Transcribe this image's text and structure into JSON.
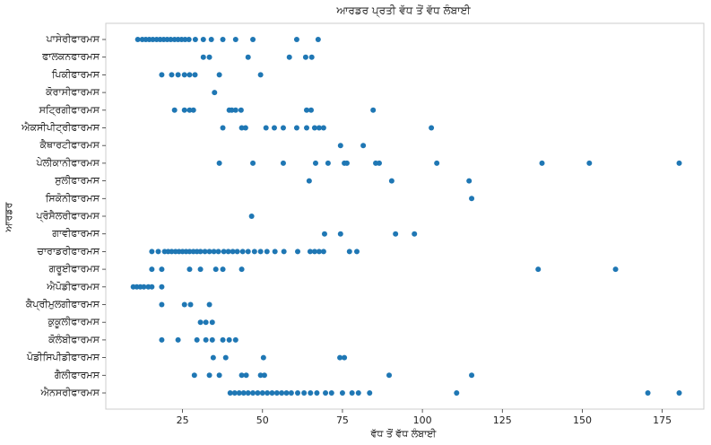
{
  "chart_data": {
    "type": "strip",
    "title": "ਆਰਡਰ ਪ੍ਰਤੀ ਵੱਧ ਤੋਂ ਵੱਧ ਲੰਬਾਈ",
    "xlabel": "ਵੱਧ ਤੋਂ ਵੱਧ ਲੰਬਾਈ",
    "ylabel": "ਆਰਡਰ",
    "color": "#1f77b4",
    "xlim": [
      1,
      188
    ],
    "xticks": [
      25,
      50,
      75,
      100,
      125,
      150,
      175
    ],
    "categories": [
      "ਪਾਸੇਰੀਫਾਰਮਸ",
      "ਫਾਲਕਨਫਾਰਮਸ",
      "ਪਿਕੀਫਾਰਮਸ",
      "ਕੋਰਾਸੀਫਾਰਮਸ",
      "ਸਟ੍ਰਿਗੀਫਾਰਮਸ",
      "ਐਕਸੀਪੀਟ੍ਰੀਫਾਰਮਸ",
      "ਕੈਥਾਰਟੀਫਾਰਮਸ",
      "ਪੇਲੀਕਾਨੀਫਾਰਮਸ",
      "ਸੁਲੀਫਾਰਮਸ",
      "ਸਿਕੋਨੀਫਾਰਮਸ",
      "ਪ੍ਰੋਸੈਲਰੀਫਾਰਮਸ",
      "ਗਾਵੀਫਾਰਮਸ",
      "ਚਾਰਾਡਰੀਫਾਰਮਸ",
      "ਗਰੂਈਫਾਰਮਸ",
      "ਐਪੋਡੀਫਾਰਮਸ",
      "ਕੈਪ੍ਰੀਮੁਲਗੀਫਾਰਮਸ",
      "ਕੁਕੂਲੀਫਾਰਮਸ",
      "ਕੋਲੰਬੀਫਾਰਮਸ",
      "ਪੋਡੀਸਿਪੀਡੀਫਾਰਮਸ",
      "ਗੈਲੀਫਾਰਮਸ",
      "ਐਨਸਰੀਫਾਰਮਸ"
    ],
    "values": [
      [
        11,
        12.4,
        13.5,
        14.6,
        15.7,
        16.9,
        18,
        19.1,
        20.2,
        21.3,
        22.5,
        23.6,
        24.7,
        25.8,
        27,
        29,
        31.5,
        34,
        37.6,
        41.6,
        47,
        60.7,
        67.4
      ],
      [
        31.5,
        33.4,
        45.5,
        58.4,
        63.5,
        65.4
      ],
      [
        18.5,
        21.6,
        23.6,
        25.6,
        27.2,
        28.9,
        36.5,
        49.4
      ],
      [
        35
      ],
      [
        22.5,
        25.6,
        27.2,
        28.4,
        39.6,
        40.4,
        41.6,
        43.3,
        63.8,
        65.2,
        84.6
      ],
      [
        37.6,
        43.5,
        44.7,
        51.1,
        53.7,
        56.5,
        60.7,
        63.8,
        66.3,
        67.7,
        69.1,
        102.8
      ],
      [
        74.4,
        81.5
      ],
      [
        36.5,
        47,
        56.5,
        66.6,
        70.5,
        75.6,
        76.4,
        85.4,
        86.5,
        104.5,
        137.4,
        152.2,
        180.3
      ],
      [
        64.6,
        90.4,
        114.6
      ],
      [
        115.4
      ],
      [
        46.6
      ],
      [
        69.4,
        74.4,
        91.6,
        97.5
      ],
      [
        15.4,
        17.4,
        19.4,
        20.5,
        21.6,
        22.8,
        23.9,
        25,
        26.1,
        27.2,
        28.4,
        29.5,
        30.6,
        32,
        33.4,
        34.8,
        36.2,
        37.9,
        39.3,
        40.7,
        42.1,
        43.8,
        45.5,
        47.5,
        49.4,
        51.4,
        53.9,
        56.7,
        61,
        64.9,
        66.3,
        67.7,
        69.1,
        77.2,
        79.5
      ],
      [
        15.4,
        18.5,
        27.2,
        30.6,
        35.4,
        37.6,
        43.5,
        136.2,
        160.4
      ],
      [
        9.6,
        10.7,
        11.8,
        12.9,
        14.3,
        15.4,
        18.5
      ],
      [
        18.5,
        25.6,
        27.5,
        33.4
      ],
      [
        30.6,
        32.3,
        34.3
      ],
      [
        18.5,
        23.6,
        29.5,
        32.3,
        34.3,
        37.6,
        39.6,
        41.6
      ],
      [
        34.6,
        38.5,
        50.3,
        74.2,
        75.6
      ],
      [
        28.7,
        33.4,
        36.5,
        43.5,
        44.9,
        49.4,
        50.6,
        89.6,
        115.4
      ],
      [
        39.9,
        41.3,
        42.7,
        44.1,
        45.5,
        47,
        48.5,
        50,
        51.5,
        53,
        54.5,
        56,
        57.5,
        59,
        61,
        63,
        65,
        67,
        69.7,
        71.6,
        75,
        78,
        80,
        83.5,
        110.7,
        170.5,
        180.3
      ]
    ]
  }
}
